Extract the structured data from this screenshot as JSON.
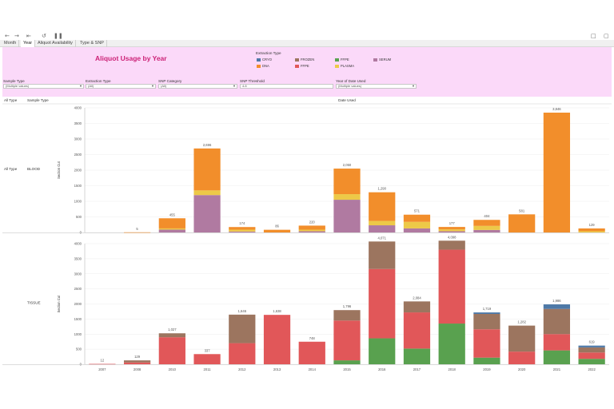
{
  "toolbar": {
    "icons": [
      "arrow-left-icon",
      "arrow-right-icon",
      "skip-back-icon",
      "refresh-icon",
      "pause-icon",
      "comment-icon",
      "fullscreen-icon"
    ]
  },
  "tabs": [
    {
      "label": "Month",
      "active": false
    },
    {
      "label": "Year",
      "active": true
    },
    {
      "label": "Aliquot Availability",
      "active": false
    },
    {
      "label": "Type & SNP",
      "active": false
    }
  ],
  "dashboard": {
    "title": "Aliquot Usage by Year",
    "background": "#fbd9f9",
    "title_color": "#cc2277"
  },
  "legend": {
    "title": "Extraction Type",
    "items": [
      {
        "label": "CRYO",
        "color": "#4e79a7"
      },
      {
        "label": "FROZEN",
        "color": "#9c755f"
      },
      {
        "label": "FFPE",
        "color": "#59a14f"
      },
      {
        "label": "SERUM",
        "color": "#b07aa1"
      },
      {
        "label": "DNA",
        "color": "#f28e2b"
      },
      {
        "label": "FFPE",
        "color": "#e15759"
      },
      {
        "label": "PLASMA",
        "color": "#edc948"
      }
    ]
  },
  "filters": [
    {
      "label": "Sample Type",
      "value": "(Multiple values)"
    },
    {
      "label": "Extraction Type",
      "value": "(All)"
    },
    {
      "label": "SNP Category",
      "value": "(All)"
    },
    {
      "label": "SNP Threshold",
      "value": "4.8"
    },
    {
      "label": "Year of Date Used",
      "value": "(Multiple values)"
    }
  ],
  "chart_data": {
    "type": "bar",
    "stacked": true,
    "column_header": "Date Used",
    "row_headers": [
      "All Type",
      "Sample Type"
    ],
    "ylabel": "Section Cut",
    "categories": [
      "2007",
      "2008",
      "2010",
      "2011",
      "2012",
      "2013",
      "2014",
      "2015",
      "2016",
      "2017",
      "2018",
      "2019",
      "2020",
      "2021",
      "2022"
    ],
    "panels": [
      {
        "all_type": "All Type",
        "sample_type": "BLOOD",
        "ylim": [
          0,
          4000
        ],
        "ticks": [
          "0",
          "500",
          "1000",
          "1500",
          "2000",
          "2500",
          "3000",
          "3500",
          "4000"
        ],
        "tick_values": [
          0,
          500,
          1000,
          1500,
          2000,
          2500,
          3000,
          3500,
          4000
        ],
        "totals": [
          null,
          5,
          455,
          2696,
          174,
          86,
          220,
          2050,
          1290,
          571,
          177,
          404,
          581,
          3846,
          129
        ],
        "total_labels": [
          "",
          "5",
          "455",
          "2,696",
          "174",
          "86",
          "220",
          "2,050",
          "1,290",
          "571",
          "177",
          "404",
          "581",
          "3,846",
          "129"
        ],
        "series": [
          {
            "name": "SERUM",
            "color": "#b07aa1",
            "values": [
              0,
              0,
              90,
              1200,
              30,
              0,
              40,
              1050,
              230,
              130,
              40,
              80,
              0,
              0,
              0
            ]
          },
          {
            "name": "PLASMA",
            "color": "#edc948",
            "values": [
              0,
              0,
              40,
              150,
              60,
              0,
              50,
              180,
              140,
              210,
              60,
              130,
              0,
              0,
              40
            ]
          },
          {
            "name": "DNA",
            "color": "#f28e2b",
            "values": [
              0,
              5,
              325,
              1346,
              84,
              86,
              130,
              820,
              920,
              231,
              77,
              194,
              581,
              3846,
              89
            ]
          }
        ]
      },
      {
        "all_type": "",
        "sample_type": "TISSUE",
        "ylim": [
          0,
          4000
        ],
        "ticks": [
          "0",
          "500",
          "1000",
          "1500",
          "2000",
          "2500",
          "3000",
          "3500",
          "4000"
        ],
        "tick_values": [
          0,
          500,
          1000,
          1500,
          2000,
          2500,
          3000,
          3500,
          4000
        ],
        "totals": [
          12,
          129,
          1027,
          337,
          1646,
          1638,
          748,
          1796,
          4071,
          2084,
          4098,
          1719,
          1282,
          1986,
          619
        ],
        "total_labels": [
          "12",
          "129",
          "1,027",
          "337",
          "1,646",
          "1,638",
          "748",
          "1,796",
          "4,071",
          "2,084",
          "4,098",
          "1,719",
          "1,282",
          "1,986",
          "619"
        ],
        "series": [
          {
            "name": "FFPE",
            "color": "#59a14f",
            "values": [
              0,
              0,
              0,
              0,
              0,
              0,
              0,
              130,
              860,
              520,
              1350,
              220,
              0,
              460,
              180
            ]
          },
          {
            "name": "FFPE",
            "color": "#e15759",
            "values": [
              12,
              60,
              897,
              337,
              700,
              1638,
              748,
              1320,
              2300,
              1200,
              2450,
              940,
              420,
              540,
              210
            ]
          },
          {
            "name": "FROZEN",
            "color": "#9c755f",
            "values": [
              0,
              69,
              130,
              0,
              946,
              0,
              0,
              346,
              911,
              364,
              298,
              509,
              862,
              836,
              169
            ]
          },
          {
            "name": "CRYO",
            "color": "#4e79a7",
            "values": [
              0,
              0,
              0,
              0,
              0,
              0,
              0,
              0,
              0,
              0,
              0,
              50,
              0,
              150,
              60
            ]
          }
        ]
      }
    ]
  }
}
